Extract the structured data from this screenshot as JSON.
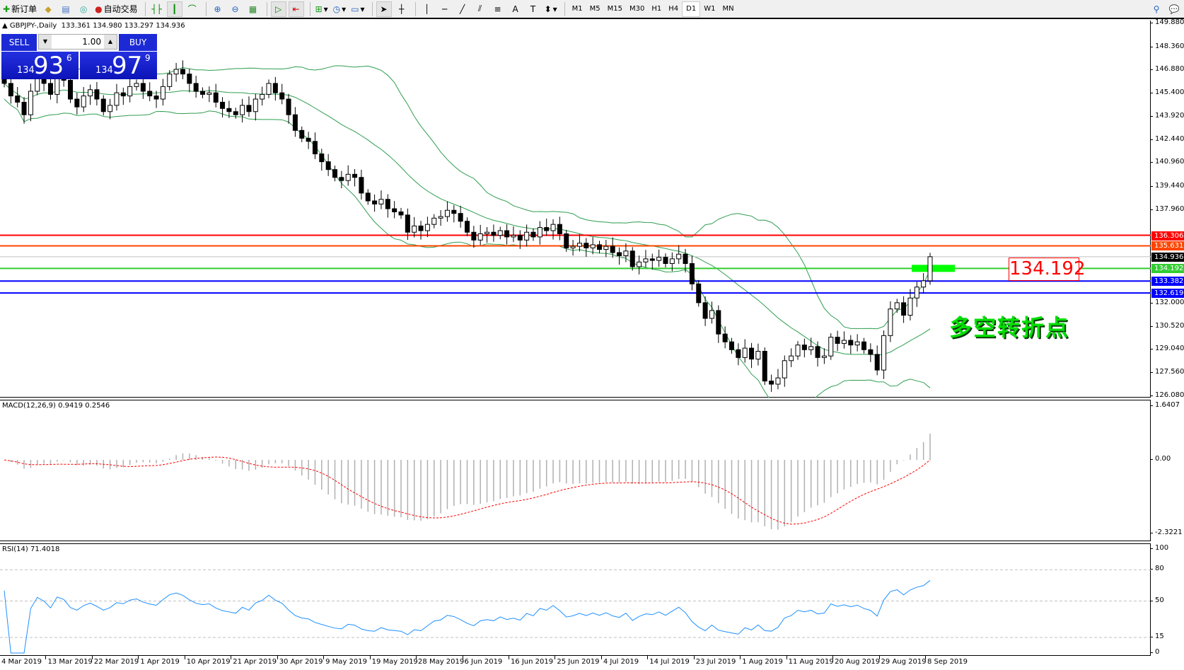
{
  "toolbar": {
    "new_order": "新订单",
    "auto_trading": "自动交易",
    "timeframes": [
      "M1",
      "M5",
      "M15",
      "M30",
      "H1",
      "H4",
      "D1",
      "W1",
      "MN"
    ],
    "active_timeframe": "D1",
    "icons": [
      "new-order-icon",
      "history-icon",
      "market-watch-icon",
      "signals-icon",
      "auto-trading-icon",
      "bar-chart-icon",
      "candlestick-icon",
      "line-chart-icon",
      "zoom-in-icon",
      "zoom-out-icon",
      "tile-windows-icon",
      "auto-scroll-icon",
      "chart-shift-icon",
      "indicators-icon",
      "periods-icon",
      "templates-icon",
      "cursor-icon",
      "crosshair-icon",
      "vertical-line-icon",
      "horizontal-line-icon",
      "trendline-icon",
      "fibonacci-icon",
      "channel-icon",
      "text-icon",
      "text-label-icon",
      "arrows-icon",
      "search-icon",
      "chat-icon"
    ]
  },
  "chart": {
    "header": "GBPJPY-,Daily",
    "ohlc": "133.361 134.980 133.297 134.936",
    "price_ticks": [
      "149.880",
      "148.360",
      "146.880",
      "145.400",
      "143.920",
      "142.440",
      "140.960",
      "139.440",
      "137.960",
      "132.000",
      "130.520",
      "129.040",
      "127.560",
      "126.080"
    ],
    "levels": [
      {
        "value": "136.306",
        "color": "#ff0000"
      },
      {
        "value": "135.631",
        "color": "#ff4500"
      },
      {
        "value": "134.192",
        "color": "#32cd32"
      },
      {
        "value": "133.382",
        "color": "#0000ff"
      },
      {
        "value": "132.619",
        "color": "#0000ff"
      }
    ],
    "current_price": "134.936",
    "label_box": "134.192",
    "annotation": "多空转折点",
    "closes": [
      146.0,
      145.2,
      144.8,
      144.0,
      145.5,
      146.3,
      146.0,
      145.3,
      146.5,
      146.2,
      145.0,
      144.5,
      145.2,
      145.6,
      145.0,
      144.2,
      144.6,
      145.4,
      145.2,
      145.8,
      146.0,
      145.5,
      145.2,
      145.0,
      145.8,
      146.6,
      146.9,
      146.6,
      146.0,
      145.5,
      145.3,
      145.4,
      144.8,
      144.4,
      144.2,
      144.0,
      144.6,
      144.2,
      145.0,
      145.3,
      146.0,
      145.4,
      145.0,
      144.0,
      143.0,
      142.5,
      142.3,
      141.5,
      141.0,
      140.5,
      140.0,
      139.8,
      140.2,
      140.0,
      139.0,
      138.5,
      138.3,
      138.6,
      138.0,
      137.8,
      137.6,
      136.5,
      136.9,
      136.6,
      137.0,
      137.4,
      137.5,
      137.9,
      137.7,
      137.2,
      136.5,
      136.0,
      136.4,
      136.5,
      136.3,
      136.6,
      136.2,
      136.3,
      136.0,
      136.5,
      136.2,
      136.8,
      136.6,
      137.0,
      136.4,
      135.5,
      135.6,
      135.8,
      135.5,
      135.7,
      135.4,
      135.6,
      135.2,
      135.0,
      135.3,
      134.3,
      134.6,
      134.8,
      134.7,
      134.9,
      134.5,
      134.8,
      135.1,
      134.5,
      133.2,
      132.0,
      131.0,
      131.5,
      130.0,
      129.5,
      129.0,
      128.5,
      129.1,
      128.4,
      128.9,
      127.0,
      126.8,
      127.2,
      128.3,
      128.6,
      129.3,
      129.0,
      129.2,
      128.5,
      128.6,
      129.8,
      129.4,
      129.6,
      129.3,
      129.5,
      129.0,
      128.7,
      127.7,
      129.9,
      131.6,
      132.0,
      131.2,
      132.3,
      133.0,
      133.4,
      134.936
    ],
    "dates": [
      "4 Mar 2019",
      "13 Mar 2019",
      "22 Mar 2019",
      "1 Apr 2019",
      "10 Apr 2019",
      "21 Apr 2019",
      "30 Apr 2019",
      "9 May 2019",
      "19 May 2019",
      "28 May 2019",
      "6 Jun 2019",
      "16 Jun 2019",
      "25 Jun 2019",
      "4 Jul 2019",
      "14 Jul 2019",
      "23 Jul 2019",
      "1 Aug 2019",
      "11 Aug 2019",
      "20 Aug 2019",
      "29 Aug 2019",
      "8 Sep 2019"
    ]
  },
  "trade_panel": {
    "sell_label": "SELL",
    "buy_label": "BUY",
    "lot": "1.00",
    "sell_big": "134",
    "sell_main": "93",
    "sell_pip": "6",
    "buy_big": "134",
    "buy_main": "97",
    "buy_pip": "9"
  },
  "macd": {
    "label": "MACD(12,26,9) 0.9419 0.2546",
    "ticks": [
      "1.6407",
      "0.00",
      "-2.3221"
    ]
  },
  "rsi": {
    "label": "RSI(14) 71.4018",
    "ticks": [
      "100",
      "80",
      "50",
      "15",
      "0"
    ]
  },
  "colors": {
    "bands": "#2e9e4f",
    "macd_signal": "#ff0000",
    "rsi": "#1e90ff",
    "highlight": "#00ff00"
  }
}
